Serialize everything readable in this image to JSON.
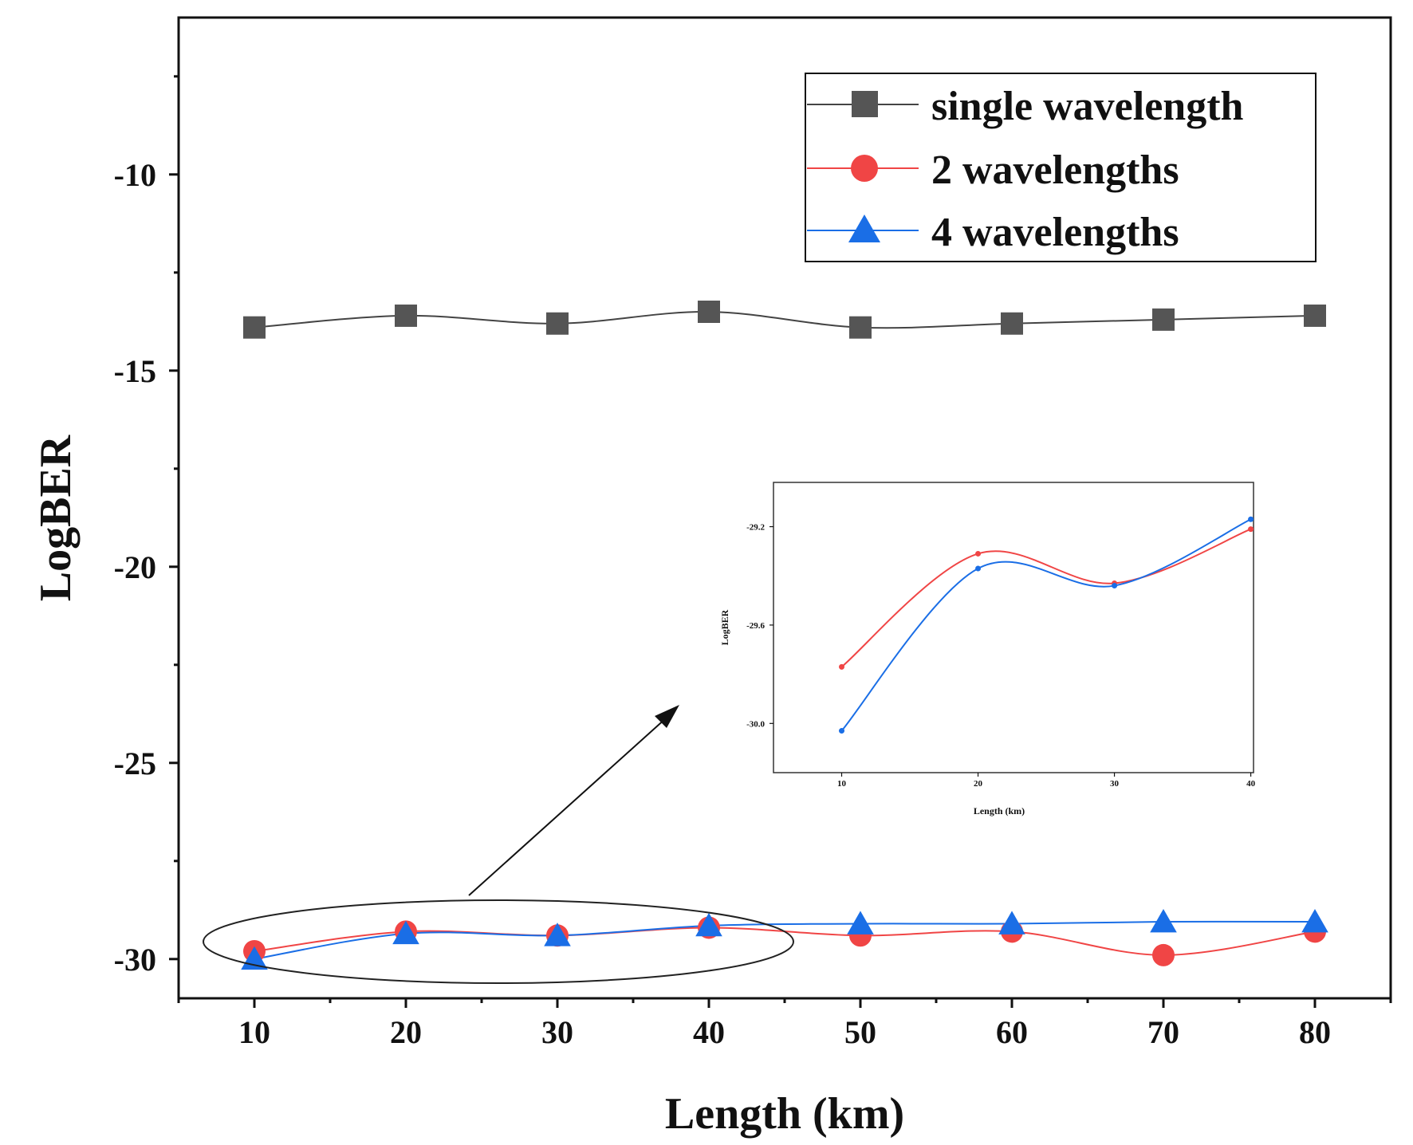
{
  "chart_data": [
    {
      "type": "line",
      "role": "main",
      "xlabel": "Length (km)",
      "ylabel": "LogBER",
      "xlim": [
        5,
        85
      ],
      "ylim": [
        -31,
        -6
      ],
      "xticks": [
        10,
        20,
        30,
        40,
        50,
        60,
        70,
        80
      ],
      "xtick_labels": [
        "10",
        "20",
        "30",
        "40",
        "50",
        "60",
        "70",
        "80"
      ],
      "yticks": [
        -10,
        -15,
        -20,
        -25,
        -30
      ],
      "ytick_labels": [
        "-10",
        "-15",
        "-20",
        "-25",
        "-30"
      ],
      "legend_position": "top-right",
      "x": [
        10,
        20,
        30,
        40,
        50,
        60,
        70,
        80
      ],
      "series": [
        {
          "name": "single wavelength",
          "marker": "square",
          "color": "#555555",
          "line_color": "#444444",
          "values": [
            -13.9,
            -13.6,
            -13.8,
            -13.5,
            -13.9,
            -13.8,
            -13.7,
            -13.6
          ]
        },
        {
          "name": "2 wavelengths",
          "marker": "circle",
          "color": "#f04545",
          "line_color": "#f04545",
          "values": [
            -29.8,
            -29.3,
            -29.4,
            -29.2,
            -29.4,
            -29.3,
            -29.9,
            -29.3
          ]
        },
        {
          "name": "4 wavelengths",
          "marker": "triangle",
          "color": "#1a6ee6",
          "line_color": "#1a6ee6",
          "values": [
            -30.0,
            -29.35,
            -29.4,
            -29.15,
            -29.1,
            -29.1,
            -29.05,
            -29.05
          ]
        }
      ],
      "annotation": "ellipse around 10–40 km with arrow pointing to inset zoom"
    },
    {
      "type": "line",
      "role": "inset",
      "xlabel": "Length (km)",
      "ylabel": "LogBER",
      "xlim": [
        5,
        40.2
      ],
      "ylim": [
        -30.2,
        -29.02
      ],
      "xticks": [
        10,
        20,
        30,
        40
      ],
      "xtick_labels": [
        "10",
        "20",
        "30",
        "40"
      ],
      "yticks": [
        -29.2,
        -29.6,
        -30.0
      ],
      "ytick_labels": [
        "-29.2",
        "-29.6",
        "-30.0"
      ],
      "x": [
        10,
        20,
        30,
        40
      ],
      "series": [
        {
          "name": "2 wavelengths",
          "color": "#f04545",
          "values": [
            -29.77,
            -29.31,
            -29.43,
            -29.21
          ]
        },
        {
          "name": "4 wavelengths",
          "color": "#1a6ee6",
          "values": [
            -30.03,
            -29.37,
            -29.44,
            -29.17
          ]
        }
      ]
    }
  ]
}
